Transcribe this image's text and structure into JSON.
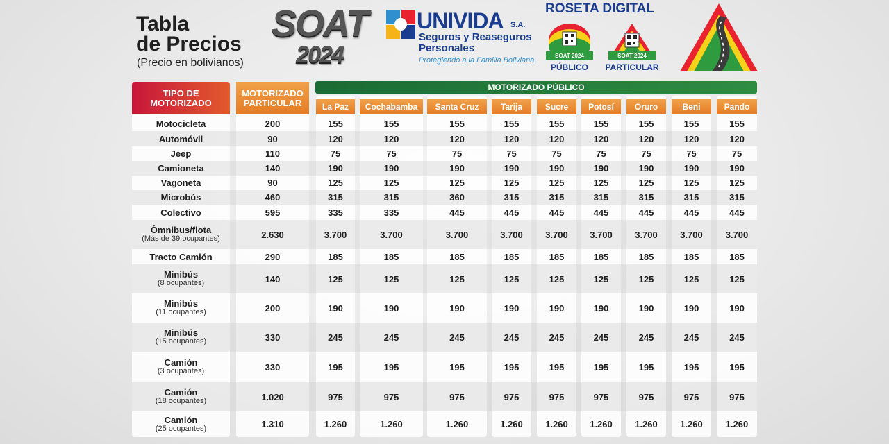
{
  "header": {
    "title_line1": "Tabla",
    "title_line2": "de Precios",
    "subtitle": "(Precio en bolivianos)",
    "soat_word": "SOAT",
    "soat_year": "2024",
    "brand": "UNIVIDA",
    "brand_suffix": "S.A.",
    "brand_desc_line1": "Seguros y Reaseguros",
    "brand_desc_line2": "Personales",
    "tagline": "Protegiendo a la Familia Boliviana",
    "roseta_title": "ROSETA DIGITAL",
    "roseta_badge_text": "SOAT 2024",
    "roseta_publico": "PÚBLICO",
    "roseta_particular": "PARTICULAR"
  },
  "colors": {
    "accent_red": "#c8163b",
    "accent_orange": "#e57b25",
    "accent_green": "#1a6b33",
    "brand_blue": "#1b3d8f"
  },
  "table": {
    "tipo_header_line1": "TIPO DE",
    "tipo_header_line2": "MOTORIZADO",
    "particular_header_line1": "MOTORIZADO",
    "particular_header_line2": "PARTICULAR",
    "publico_header": "MOTORIZADO PÚBLICO",
    "cities": [
      "La Paz",
      "Cochabamba",
      "Santa Cruz",
      "Tarija",
      "Sucre",
      "Potosí",
      "Oruro",
      "Beni",
      "Pando"
    ],
    "rows": [
      {
        "tipo": "Motocicleta",
        "sub": "",
        "particular": "200",
        "values": [
          "155",
          "155",
          "155",
          "155",
          "155",
          "155",
          "155",
          "155",
          "155"
        ]
      },
      {
        "tipo": "Automóvil",
        "sub": "",
        "particular": "90",
        "values": [
          "120",
          "120",
          "120",
          "120",
          "120",
          "120",
          "120",
          "120",
          "120"
        ]
      },
      {
        "tipo": "Jeep",
        "sub": "",
        "particular": "110",
        "values": [
          "75",
          "75",
          "75",
          "75",
          "75",
          "75",
          "75",
          "75",
          "75"
        ]
      },
      {
        "tipo": "Camioneta",
        "sub": "",
        "particular": "140",
        "values": [
          "190",
          "190",
          "190",
          "190",
          "190",
          "190",
          "190",
          "190",
          "190"
        ]
      },
      {
        "tipo": "Vagoneta",
        "sub": "",
        "particular": "90",
        "values": [
          "125",
          "125",
          "125",
          "125",
          "125",
          "125",
          "125",
          "125",
          "125"
        ]
      },
      {
        "tipo": "Microbús",
        "sub": "",
        "particular": "460",
        "values": [
          "315",
          "315",
          "360",
          "315",
          "315",
          "315",
          "315",
          "315",
          "315"
        ]
      },
      {
        "tipo": "Colectivo",
        "sub": "",
        "particular": "595",
        "values": [
          "335",
          "335",
          "445",
          "445",
          "445",
          "445",
          "445",
          "445",
          "445"
        ]
      },
      {
        "tipo": "Ómnibus/flota",
        "sub": "(Más de 39 ocupantes)",
        "particular": "2.630",
        "values": [
          "3.700",
          "3.700",
          "3.700",
          "3.700",
          "3.700",
          "3.700",
          "3.700",
          "3.700",
          "3.700"
        ]
      },
      {
        "tipo": "Tracto Camión",
        "sub": "",
        "particular": "290",
        "values": [
          "185",
          "185",
          "185",
          "185",
          "185",
          "185",
          "185",
          "185",
          "185"
        ]
      },
      {
        "tipo": "Minibús",
        "sub": "(8 ocupantes)",
        "particular": "140",
        "values": [
          "125",
          "125",
          "125",
          "125",
          "125",
          "125",
          "125",
          "125",
          "125"
        ]
      },
      {
        "tipo": "Minibús",
        "sub": "(11 ocupantes)",
        "particular": "200",
        "values": [
          "190",
          "190",
          "190",
          "190",
          "190",
          "190",
          "190",
          "190",
          "190"
        ]
      },
      {
        "tipo": "Minibús",
        "sub": "(15 ocupantes)",
        "particular": "330",
        "values": [
          "245",
          "245",
          "245",
          "245",
          "245",
          "245",
          "245",
          "245",
          "245"
        ]
      },
      {
        "tipo": "Camión",
        "sub": "(3 ocupantes)",
        "particular": "330",
        "values": [
          "195",
          "195",
          "195",
          "195",
          "195",
          "195",
          "195",
          "195",
          "195"
        ]
      },
      {
        "tipo": "Camión",
        "sub": "(18 ocupantes)",
        "particular": "1.020",
        "values": [
          "975",
          "975",
          "975",
          "975",
          "975",
          "975",
          "975",
          "975",
          "975"
        ]
      },
      {
        "tipo": "Camión",
        "sub": "(25 ocupantes)",
        "particular": "1.310",
        "values": [
          "1.260",
          "1.260",
          "1.260",
          "1.260",
          "1.260",
          "1.260",
          "1.260",
          "1.260",
          "1.260"
        ]
      }
    ]
  }
}
